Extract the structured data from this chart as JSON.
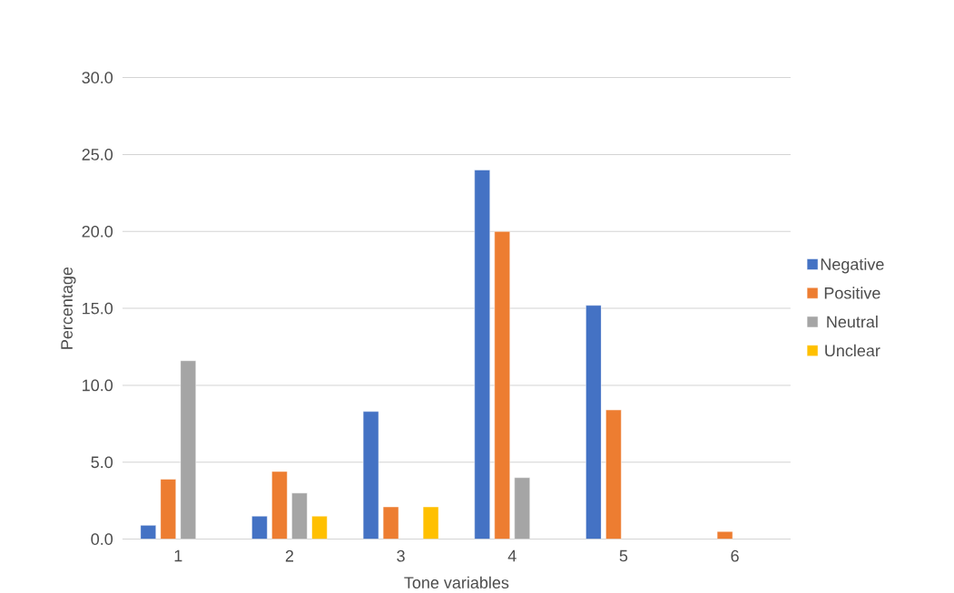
{
  "chart_data": {
    "type": "bar",
    "xlabel": "Tone variables",
    "ylabel": "Percentage",
    "categories": [
      "1",
      "2",
      "3",
      "4",
      "5",
      "6"
    ],
    "series": [
      {
        "name": "Negative",
        "color": "#4472c4",
        "values": [
          0.9,
          1.5,
          8.3,
          24.0,
          15.2,
          null
        ]
      },
      {
        "name": "Positive",
        "color": "#ed7d31",
        "values": [
          3.9,
          4.4,
          2.1,
          20.0,
          8.4,
          0.5
        ]
      },
      {
        "name": "Neutral",
        "color": "#a5a5a5",
        "values": [
          11.6,
          3.0,
          null,
          4.0,
          null,
          null
        ]
      },
      {
        "name": "Unclear",
        "color": "#ffc000",
        "values": [
          null,
          1.5,
          2.1,
          null,
          null,
          null
        ]
      }
    ],
    "ylim": [
      0,
      30
    ],
    "yticks": [
      {
        "value": 0,
        "label": "0.0"
      },
      {
        "value": 5,
        "label": "5.0"
      },
      {
        "value": 10,
        "label": "10.0"
      },
      {
        "value": 15,
        "label": "15.0"
      },
      {
        "value": 20,
        "label": "20.0"
      },
      {
        "value": 25,
        "label": "25.0"
      },
      {
        "value": 30,
        "label": "30.0"
      }
    ],
    "grid": "y",
    "legend": "right"
  }
}
